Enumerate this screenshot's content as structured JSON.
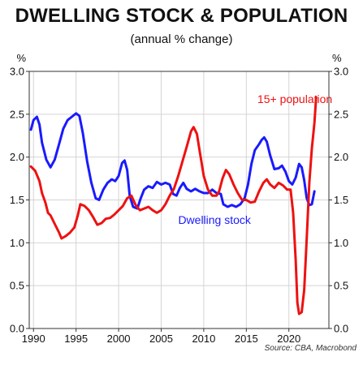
{
  "chart_data": {
    "type": "line",
    "title": "DWELLING STOCK & POPULATION",
    "subtitle": "(annual % change)",
    "source": "Source: CBA, Macrobond",
    "y_unit_left": "%",
    "y_unit_right": "%",
    "xlim": [
      1989.5,
      2024.7
    ],
    "ylim": [
      0.0,
      3.0
    ],
    "x_ticks": [
      1990,
      1995,
      2000,
      2005,
      2010,
      2015,
      2020
    ],
    "x_tick_labels": [
      "1990",
      "1995",
      "2000",
      "2005",
      "2010",
      "2015",
      "2020"
    ],
    "y_ticks": [
      0.0,
      0.5,
      1.0,
      1.5,
      2.0,
      2.5,
      3.0
    ],
    "y_tick_labels": [
      "0.0",
      "0.5",
      "1.0",
      "1.5",
      "2.0",
      "2.5",
      "3.0"
    ],
    "grid": true,
    "series": [
      {
        "name": "Dwelling stock",
        "color": "#1a1aff",
        "points": [
          [
            1989.7,
            2.32
          ],
          [
            1990.0,
            2.43
          ],
          [
            1990.4,
            2.47
          ],
          [
            1990.7,
            2.38
          ],
          [
            1991.0,
            2.17
          ],
          [
            1991.5,
            1.97
          ],
          [
            1992.0,
            1.88
          ],
          [
            1992.5,
            1.97
          ],
          [
            1993.0,
            2.15
          ],
          [
            1993.5,
            2.33
          ],
          [
            1994.0,
            2.43
          ],
          [
            1994.5,
            2.47
          ],
          [
            1995.0,
            2.51
          ],
          [
            1995.4,
            2.48
          ],
          [
            1995.8,
            2.28
          ],
          [
            1996.3,
            1.95
          ],
          [
            1996.8,
            1.7
          ],
          [
            1997.3,
            1.52
          ],
          [
            1997.7,
            1.5
          ],
          [
            1998.2,
            1.62
          ],
          [
            1998.7,
            1.7
          ],
          [
            1999.2,
            1.74
          ],
          [
            1999.6,
            1.72
          ],
          [
            2000.0,
            1.78
          ],
          [
            2000.4,
            1.93
          ],
          [
            2000.7,
            1.96
          ],
          [
            2001.0,
            1.85
          ],
          [
            2001.3,
            1.55
          ],
          [
            2001.7,
            1.42
          ],
          [
            2002.2,
            1.4
          ],
          [
            2002.6,
            1.52
          ],
          [
            2003.0,
            1.62
          ],
          [
            2003.5,
            1.66
          ],
          [
            2004.0,
            1.64
          ],
          [
            2004.5,
            1.71
          ],
          [
            2005.0,
            1.68
          ],
          [
            2005.5,
            1.7
          ],
          [
            2006.0,
            1.68
          ],
          [
            2006.4,
            1.57
          ],
          [
            2006.8,
            1.55
          ],
          [
            2007.2,
            1.64
          ],
          [
            2007.6,
            1.7
          ],
          [
            2008.0,
            1.63
          ],
          [
            2008.5,
            1.6
          ],
          [
            2009.0,
            1.63
          ],
          [
            2009.5,
            1.6
          ],
          [
            2010.0,
            1.58
          ],
          [
            2010.5,
            1.58
          ],
          [
            2011.0,
            1.62
          ],
          [
            2011.5,
            1.58
          ],
          [
            2012.0,
            1.57
          ],
          [
            2012.3,
            1.45
          ],
          [
            2012.8,
            1.42
          ],
          [
            2013.3,
            1.44
          ],
          [
            2013.8,
            1.42
          ],
          [
            2014.3,
            1.45
          ],
          [
            2014.8,
            1.52
          ],
          [
            2015.2,
            1.68
          ],
          [
            2015.6,
            1.92
          ],
          [
            2016.0,
            2.08
          ],
          [
            2016.5,
            2.15
          ],
          [
            2016.8,
            2.2
          ],
          [
            2017.1,
            2.23
          ],
          [
            2017.4,
            2.18
          ],
          [
            2017.8,
            2.02
          ],
          [
            2018.3,
            1.86
          ],
          [
            2018.8,
            1.87
          ],
          [
            2019.2,
            1.9
          ],
          [
            2019.6,
            1.83
          ],
          [
            2020.0,
            1.72
          ],
          [
            2020.4,
            1.68
          ],
          [
            2020.8,
            1.76
          ],
          [
            2021.2,
            1.92
          ],
          [
            2021.5,
            1.88
          ],
          [
            2021.8,
            1.73
          ],
          [
            2022.1,
            1.52
          ],
          [
            2022.4,
            1.44
          ],
          [
            2022.7,
            1.45
          ],
          [
            2023.0,
            1.6
          ]
        ]
      },
      {
        "name": "15+ population",
        "color": "#ee1111",
        "points": [
          [
            1989.7,
            1.89
          ],
          [
            1990.2,
            1.84
          ],
          [
            1990.7,
            1.72
          ],
          [
            1991.0,
            1.58
          ],
          [
            1991.4,
            1.47
          ],
          [
            1991.7,
            1.35
          ],
          [
            1992.0,
            1.32
          ],
          [
            1992.5,
            1.22
          ],
          [
            1993.0,
            1.12
          ],
          [
            1993.3,
            1.05
          ],
          [
            1993.8,
            1.08
          ],
          [
            1994.3,
            1.12
          ],
          [
            1994.8,
            1.18
          ],
          [
            1995.2,
            1.32
          ],
          [
            1995.5,
            1.45
          ],
          [
            1996.0,
            1.43
          ],
          [
            1996.5,
            1.38
          ],
          [
            1997.0,
            1.3
          ],
          [
            1997.5,
            1.21
          ],
          [
            1998.0,
            1.23
          ],
          [
            1998.5,
            1.28
          ],
          [
            1999.0,
            1.29
          ],
          [
            1999.5,
            1.33
          ],
          [
            2000.0,
            1.38
          ],
          [
            2000.5,
            1.43
          ],
          [
            2001.0,
            1.52
          ],
          [
            2001.5,
            1.55
          ],
          [
            2002.0,
            1.44
          ],
          [
            2002.5,
            1.38
          ],
          [
            2003.0,
            1.4
          ],
          [
            2003.5,
            1.42
          ],
          [
            2004.0,
            1.38
          ],
          [
            2004.5,
            1.35
          ],
          [
            2005.0,
            1.38
          ],
          [
            2005.5,
            1.45
          ],
          [
            2006.0,
            1.55
          ],
          [
            2006.5,
            1.63
          ],
          [
            2007.0,
            1.78
          ],
          [
            2007.5,
            1.95
          ],
          [
            2008.0,
            2.12
          ],
          [
            2008.5,
            2.3
          ],
          [
            2008.8,
            2.35
          ],
          [
            2009.2,
            2.27
          ],
          [
            2009.5,
            2.08
          ],
          [
            2010.0,
            1.78
          ],
          [
            2010.5,
            1.62
          ],
          [
            2011.0,
            1.55
          ],
          [
            2011.5,
            1.55
          ],
          [
            2011.8,
            1.6
          ],
          [
            2012.2,
            1.75
          ],
          [
            2012.6,
            1.85
          ],
          [
            2013.0,
            1.8
          ],
          [
            2013.5,
            1.68
          ],
          [
            2014.0,
            1.58
          ],
          [
            2014.5,
            1.5
          ],
          [
            2015.0,
            1.5
          ],
          [
            2015.5,
            1.47
          ],
          [
            2016.0,
            1.48
          ],
          [
            2016.5,
            1.6
          ],
          [
            2017.0,
            1.7
          ],
          [
            2017.4,
            1.74
          ],
          [
            2017.8,
            1.68
          ],
          [
            2018.3,
            1.64
          ],
          [
            2018.8,
            1.7
          ],
          [
            2019.3,
            1.67
          ],
          [
            2019.8,
            1.62
          ],
          [
            2020.2,
            1.62
          ],
          [
            2020.5,
            1.35
          ],
          [
            2020.8,
            0.8
          ],
          [
            2021.0,
            0.3
          ],
          [
            2021.2,
            0.17
          ],
          [
            2021.5,
            0.19
          ],
          [
            2021.8,
            0.45
          ],
          [
            2022.1,
            1.05
          ],
          [
            2022.4,
            1.7
          ],
          [
            2022.7,
            2.1
          ],
          [
            2023.0,
            2.4
          ],
          [
            2023.2,
            2.7
          ]
        ]
      }
    ],
    "series_labels": [
      {
        "text": "Dwelling stock",
        "x": 2007.0,
        "y": 1.22,
        "color": "#1a1aff"
      },
      {
        "text": "15+ population",
        "x": 2016.3,
        "y": 2.63,
        "color": "#ee1111"
      }
    ]
  }
}
